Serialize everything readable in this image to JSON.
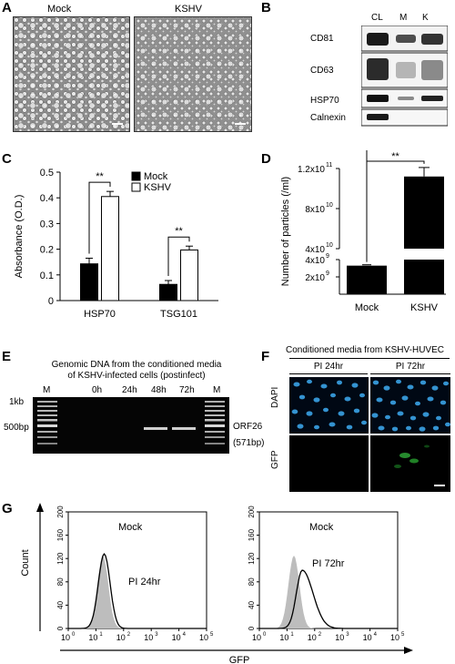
{
  "panels": {
    "A": {
      "label": "A",
      "images": [
        "Mock",
        "KSHV"
      ]
    },
    "B": {
      "label": "B",
      "lanes": [
        "CL",
        "M",
        "K"
      ],
      "rows": [
        "CD81",
        "CD63",
        "HSP70",
        "Calnexin"
      ]
    },
    "C": {
      "label": "C",
      "chart_data": {
        "type": "bar",
        "categories": [
          "HSP70",
          "TSG101"
        ],
        "series": [
          {
            "name": "Mock",
            "values": [
              0.143,
              0.063
            ],
            "errors": [
              0.022,
              0.015
            ],
            "color": "#000000"
          },
          {
            "name": "KSHV",
            "values": [
              0.405,
              0.197
            ],
            "errors": [
              0.02,
              0.015
            ],
            "color": "#ffffff"
          }
        ],
        "ylabel": "Absorbance (O.D.)",
        "ylim": [
          0,
          0.5
        ],
        "yticks": [
          "0",
          "0.1",
          "0.2",
          "0.3",
          "0.4",
          "0.5"
        ],
        "significance": [
          "**",
          "**"
        ],
        "legend_position": "top-right"
      }
    },
    "D": {
      "label": "D",
      "chart_data": {
        "type": "bar",
        "categories": [
          "Mock",
          "KSHV"
        ],
        "values": [
          3300000000.0,
          112000000000.0
        ],
        "errors": [
          100000000.0,
          9000000000.0
        ],
        "ylabel": "Number of particles (/ml)",
        "yticks_upper": [
          "1.2x10",
          "8x10",
          "4x10"
        ],
        "yticks_upper_exp": [
          "11",
          "10",
          "10"
        ],
        "yticks_lower": [
          "4x10",
          "2x10"
        ],
        "yticks_lower_exp": [
          "9",
          "9"
        ],
        "axis_break": true,
        "significance": "**"
      }
    },
    "E": {
      "label": "E",
      "title_line1": "Genomic DNA from the conditioned media",
      "title_line2": "of KSHV-infected cells (postinfect)",
      "lanes": [
        "M",
        "0h",
        "24h",
        "48h",
        "72h",
        "M"
      ],
      "size_markers": [
        "1kb",
        "500bp"
      ],
      "band_label": "ORF26",
      "band_size": "(571bp)"
    },
    "F": {
      "label": "F",
      "header": "Conditioned media from KSHV-HUVEC",
      "columns": [
        "PI 24hr",
        "PI 72hr"
      ],
      "rows": [
        "DAPI",
        "GFP"
      ]
    },
    "G": {
      "label": "G",
      "ylabel": "Count",
      "xlabel": "GFP",
      "yticks": [
        "0",
        "40",
        "80",
        "120",
        "160",
        "200"
      ],
      "xtick_base": "10",
      "xtick_exps": [
        "0",
        "1",
        "2",
        "3",
        "4",
        "5"
      ],
      "plots": [
        {
          "legend_ref": "Mock",
          "legend_sample": "PI 24hr"
        },
        {
          "legend_ref": "Mock",
          "legend_sample": "PI 72hr"
        }
      ]
    }
  }
}
